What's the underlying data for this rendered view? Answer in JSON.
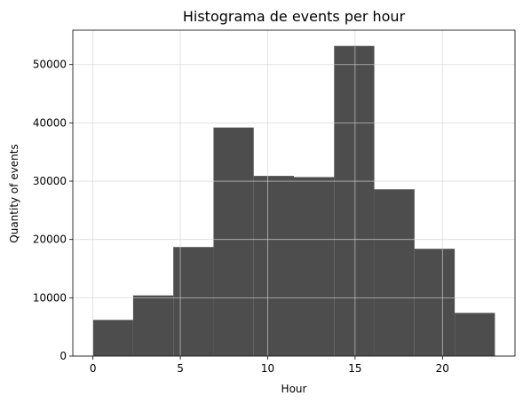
{
  "chart_data": {
    "type": "bar",
    "title": "Histograma de events per hour",
    "xlabel": "Hour",
    "ylabel": "Quantity of events",
    "bin_edges": [
      0,
      2.3,
      4.6,
      6.9,
      9.2,
      11.5,
      13.8,
      16.1,
      18.4,
      20.7,
      23
    ],
    "values": [
      6200,
      10400,
      18700,
      39200,
      30900,
      30700,
      53200,
      28600,
      18400,
      7400
    ],
    "xlim": [
      -1.15,
      24.15
    ],
    "ylim": [
      0,
      55900
    ],
    "x_ticks": [
      0,
      5,
      10,
      15,
      20
    ],
    "x_tick_labels": [
      "0",
      "5",
      "10",
      "15",
      "20"
    ],
    "y_ticks": [
      0,
      10000,
      20000,
      30000,
      40000,
      50000
    ],
    "y_tick_labels": [
      "0",
      "10000",
      "20000",
      "30000",
      "40000",
      "50000"
    ],
    "grid": true,
    "bar_color": "#4d4d4d",
    "grid_color": "#d3d3d3"
  }
}
